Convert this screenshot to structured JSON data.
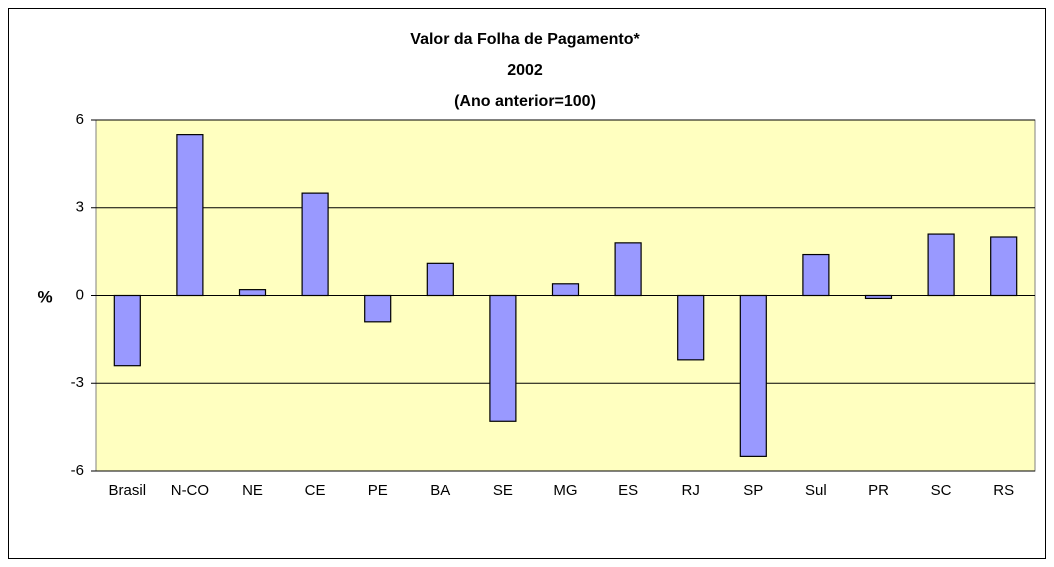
{
  "chart_data": {
    "type": "bar",
    "title": [
      "Valor da Folha de Pagamento*",
      "2002",
      "(Ano anterior=100)"
    ],
    "y_label": "%",
    "categories": [
      "Brasil",
      "N-CO",
      "NE",
      "CE",
      "PE",
      "BA",
      "SE",
      "MG",
      "ES",
      "RJ",
      "SP",
      "Sul",
      "PR",
      "SC",
      "RS"
    ],
    "values": [
      -2.4,
      5.5,
      0.2,
      3.5,
      -0.9,
      1.1,
      -4.3,
      0.4,
      1.8,
      -2.2,
      -5.5,
      1.4,
      -0.1,
      2.1,
      2.0
    ],
    "color": "#9999ff",
    "ylim": [
      -6,
      6
    ],
    "yticks": [
      -6,
      -3,
      0,
      3,
      6
    ],
    "grid": true
  }
}
